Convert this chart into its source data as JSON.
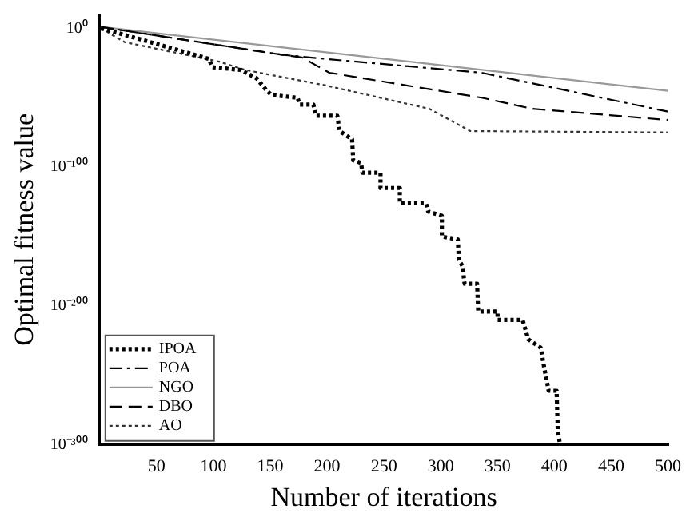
{
  "chart_data": {
    "type": "line",
    "xlabel": "Number of iterations",
    "ylabel": "Optimal fitness value",
    "log": "y",
    "grid": false,
    "legend": "bottom left",
    "marker": "none",
    "xlim": [
      0,
      500
    ],
    "xticks": [
      50,
      100,
      150,
      200,
      250,
      300,
      350,
      400,
      450,
      500
    ],
    "ylim": [
      1e-300,
      10000000000.0
    ],
    "yticks": [
      {
        "value": 1,
        "label": "10⁰"
      },
      {
        "value": 1e-100,
        "label": "10⁻¹⁰⁰"
      },
      {
        "value": 1e-200,
        "label": "10⁻²⁰⁰"
      },
      {
        "value": 1e-300,
        "label": "10⁻³⁰⁰"
      }
    ],
    "series": [
      {
        "name": "IPOA",
        "color": "#000000",
        "line_style": "dotted",
        "x": [
          1,
          36,
          96,
          99,
          124,
          138,
          147,
          151,
          174,
          176,
          188,
          190,
          209,
          211,
          222,
          223,
          230,
          231,
          247,
          247,
          264,
          264,
          287,
          289,
          301,
          301,
          315,
          316,
          319,
          321,
          332,
          333,
          350,
          350,
          372,
          375,
          377,
          388,
          391,
          395,
          402,
          403,
          405
        ],
        "values": [
          1,
          1e-08,
          1e-22,
          1e-28,
          1e-30,
          1e-36,
          1e-45,
          1e-48,
          1e-50,
          1e-55,
          1e-55,
          1e-63,
          1e-63,
          1e-74,
          1e-80,
          1e-95,
          1e-97,
          1e-104,
          1e-104,
          1e-115,
          1e-115,
          1e-126,
          1e-126,
          1e-132,
          1e-135,
          1e-150,
          1e-152,
          1e-167,
          1e-171,
          1e-184,
          1e-184,
          1e-204,
          1e-204,
          1e-210,
          1e-210,
          1e-218,
          1e-224,
          1e-230,
          1e-244,
          1e-261,
          1e-261,
          1e-289,
          1e-300
        ]
      },
      {
        "name": "POA",
        "color": "#000000",
        "line_style": "dashdot",
        "x": [
          1,
          96,
          160,
          198,
          336,
          500
        ],
        "values": [
          10,
          1e-11,
          1e-19,
          1e-22,
          1e-32,
          1e-60
        ]
      },
      {
        "name": "NGO",
        "color": "#999999",
        "line_style": "solid",
        "x": [
          1,
          500
        ],
        "values": [
          10,
          1e-45
        ]
      },
      {
        "name": "DBO",
        "color": "#000000",
        "line_style": "dashed",
        "x": [
          1,
          96,
          160,
          178,
          202,
          336,
          381,
          500
        ],
        "values": [
          10,
          1e-11,
          1e-19,
          1e-21,
          1e-32,
          1e-50,
          1e-58,
          1e-66
        ]
      },
      {
        "name": "AO",
        "color": "#333333",
        "line_style": "dotted",
        "x": [
          1,
          22,
          105,
          128,
          198,
          290,
          326,
          500
        ],
        "values": [
          1,
          1e-10,
          1e-24,
          1e-30,
          1e-41,
          1e-58,
          1e-74,
          1e-75
        ]
      }
    ]
  }
}
